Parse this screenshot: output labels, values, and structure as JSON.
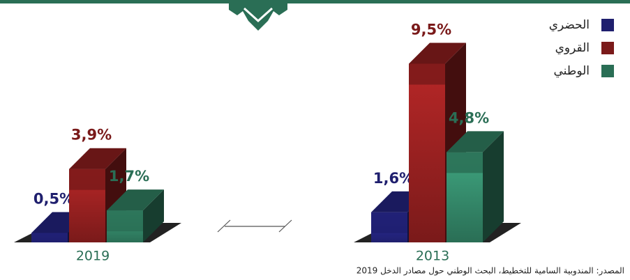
{
  "chart_data": {
    "type": "bar3d",
    "categories": [
      "2019",
      "2013"
    ],
    "series": [
      {
        "name": "الحضري",
        "color": "#1f1f6e",
        "values": [
          0.5,
          1.6
        ],
        "value_labels": [
          "0,5%",
          "1,6%"
        ]
      },
      {
        "name": "القروي",
        "color": "#7a1a1a",
        "values": [
          3.9,
          9.5
        ],
        "value_labels": [
          "3,9%",
          "9,5%"
        ]
      },
      {
        "name": "الوطني",
        "color": "#2a6e55",
        "values": [
          1.7,
          4.8
        ],
        "value_labels": [
          "1,7%",
          "4,8%"
        ]
      }
    ],
    "source": "المصدر: المندوبية السامية للتخطيط، البحث الوطني حول مصادر الدخل 2019"
  }
}
